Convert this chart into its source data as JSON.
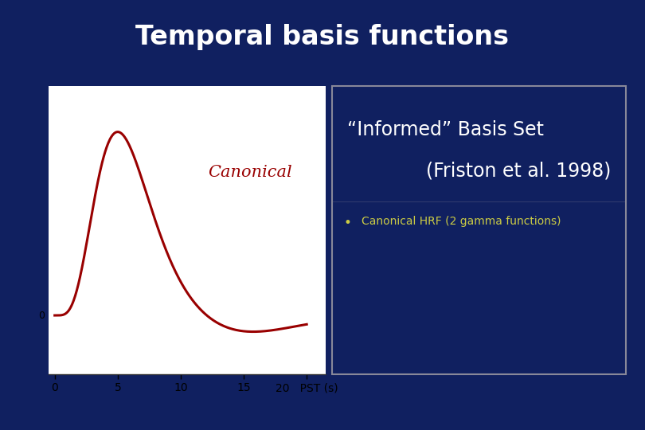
{
  "title": "Temporal basis functions",
  "title_color": "#ffffff",
  "title_fontsize": 24,
  "title_fontweight": "bold",
  "bg_color": "#102060",
  "header_bg": "#0a1840",
  "plot_bg": "#ffffff",
  "hrf_color": "#990000",
  "hrf_linewidth": 2.2,
  "canonical_label": "Canonical",
  "canonical_label_color": "#990000",
  "canonical_label_fontsize": 15,
  "informed_title_line1": "“Informed” Basis Set",
  "informed_title_line2": "(Friston et al. 1998)",
  "informed_title_color": "#ffffff",
  "informed_title_fontsize": 17,
  "bullet_text": "Canonical HRF (2 gamma functions)",
  "bullet_color": "#cccc44",
  "bullet_fontsize": 10,
  "xlabel": "PST (s)",
  "xlabel_fontsize": 10,
  "xticks": [
    0,
    5,
    10,
    15,
    20
  ],
  "zero_label": "0",
  "zero_label_fontsize": 9,
  "separator_color": "#888899",
  "box_border_color": "#888899",
  "right_border_color": "#888899"
}
